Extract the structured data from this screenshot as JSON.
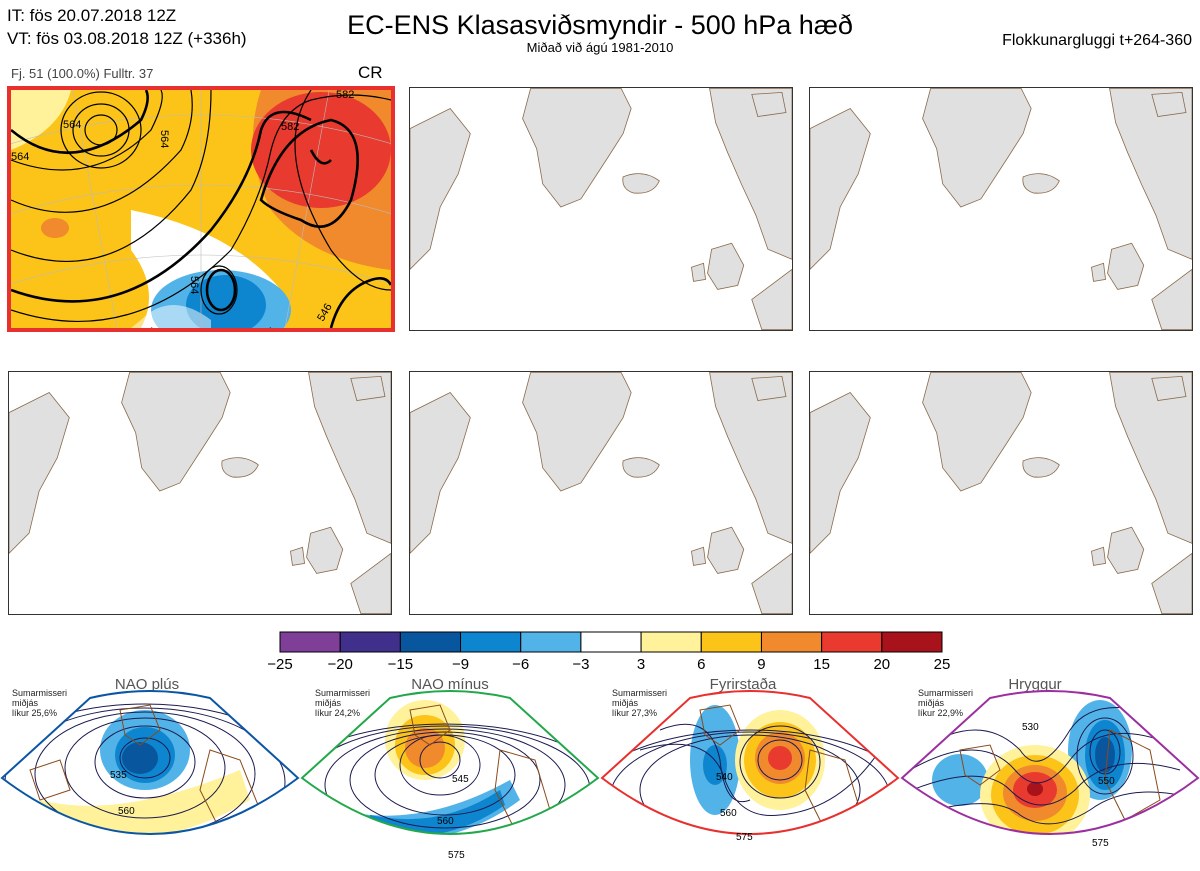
{
  "header": {
    "it_line": "IT: fös 20.07.2018 12Z",
    "vt_line": "VT: fös 03.08.2018 12Z  (+336h)",
    "title": "EC-ENS Klasasviðsmyndir - 500 hPa hæð",
    "subtitle": "Miðað við ágú 1981-2010",
    "window_label": "Flokkunargluggi t+264-360"
  },
  "cluster_panel": {
    "info_label": "Fj. 51 (100.0%)   Fulltr. 37",
    "regime_code": "CR",
    "active_border_color": "#e8302e",
    "contour_labels": [
      "564",
      "564",
      "564",
      "582",
      "564",
      "546",
      "582"
    ]
  },
  "chart_data": {
    "type": "heatmap",
    "colorbar": {
      "ticks": [
        "−25",
        "−20",
        "−15",
        "−9",
        "−6",
        "−3",
        "3",
        "6",
        "9",
        "15",
        "20",
        "25"
      ],
      "bins": [
        {
          "from": -25,
          "to": -20,
          "color": "#7f3f98"
        },
        {
          "from": -20,
          "to": -15,
          "color": "#40308c"
        },
        {
          "from": -15,
          "to": -9,
          "color": "#08569e"
        },
        {
          "from": -9,
          "to": -6,
          "color": "#0e86cf"
        },
        {
          "from": -6,
          "to": -3,
          "color": "#52b3e8"
        },
        {
          "from": -3,
          "to": 3,
          "color": "#ffffff"
        },
        {
          "from": 3,
          "to": 6,
          "color": "#fff29a"
        },
        {
          "from": 6,
          "to": 9,
          "color": "#fcc419"
        },
        {
          "from": 9,
          "to": 15,
          "color": "#f08a2c"
        },
        {
          "from": 15,
          "to": 20,
          "color": "#e83a2e"
        },
        {
          "from": 20,
          "to": 25,
          "color": "#a8121b"
        }
      ]
    }
  },
  "regimes": [
    {
      "name": "NAO plús",
      "season": "Sumarmisseri",
      "basis": "miðjás",
      "prob": "líkur 25,6%",
      "color": "#0a56a4",
      "contours": [
        "535",
        "560"
      ]
    },
    {
      "name": "NAO mínus",
      "season": "Sumarmisseri",
      "basis": "miðjás",
      "prob": "líkur 24,2%",
      "color": "#22a84a",
      "contours": [
        "545",
        "560",
        "575"
      ]
    },
    {
      "name": "Fyrirstaða",
      "season": "Sumarmisseri",
      "basis": "miðjás",
      "prob": "líkur 27,3%",
      "color": "#e8302e",
      "contours": [
        "540",
        "560",
        "575"
      ]
    },
    {
      "name": "Hryggur",
      "season": "Sumarmisseri",
      "basis": "miðjás",
      "prob": "líkur 22,9%",
      "color": "#9b2fa0",
      "contours": [
        "530",
        "550",
        "575"
      ]
    }
  ]
}
